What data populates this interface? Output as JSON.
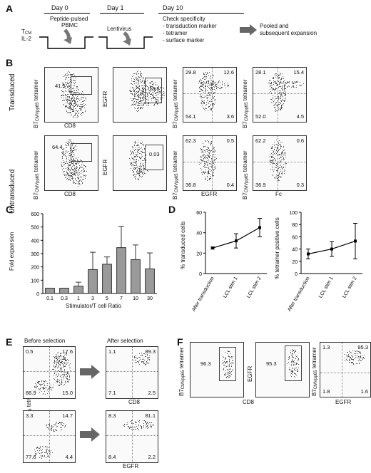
{
  "panelA": {
    "label": "A",
    "day0": "Day 0",
    "day1": "Day 1",
    "day10": "Day 10",
    "peptide": "Peptide-pulsed",
    "pbmc": "PBMC",
    "tcm": "T",
    "tcm_sub": "CM",
    "il2": "IL-2",
    "lentivirus": "Lentivirus",
    "check_title": "Check specificity",
    "check_items": [
      "- transduction marker",
      "- tetramer",
      "- surface marker"
    ],
    "pooled1": "Pooled and",
    "pooled2": "subsequent expansion"
  },
  "panelB": {
    "label": "B",
    "row1": "Transduced",
    "row2": "Untransduced",
    "tet_label": "B7",
    "tet_sub": "CMVpp65",
    "tet_suffix": " tetramer",
    "egfr": "EGFR",
    "cd8": "CD8",
    "fc": "Fc",
    "t_p1": "41.5",
    "t_p2": "13.8",
    "t_p3": [
      "29.8",
      "12.6",
      "54.1",
      "3.6"
    ],
    "t_p4": [
      "28.1",
      "15.4",
      "52.0",
      "4.5"
    ],
    "u_p1": "64.4",
    "u_p2": "0.03",
    "u_p3": [
      "62.3",
      "0.5",
      "36.8",
      "0.4"
    ],
    "u_p4": [
      "62.2",
      "0.6",
      "36.9",
      "0.3"
    ]
  },
  "panelC": {
    "label": "C",
    "chart_data": {
      "type": "bar",
      "categories": [
        "0.1",
        "0.3",
        "1",
        "3",
        "5",
        "7",
        "10",
        "30"
      ],
      "values": [
        40,
        40,
        55,
        180,
        220,
        345,
        255,
        185
      ],
      "errors_upper": [
        0,
        0,
        85,
        310,
        275,
        505,
        365,
        305
      ],
      "ylabel": "Fold expansion",
      "xlabel": "Stimulator/T cell Ratio",
      "ylim": [
        0,
        600
      ],
      "yticks": [
        "0",
        "100",
        "200",
        "300",
        "400",
        "500",
        "600"
      ]
    }
  },
  "panelD": {
    "label": "D",
    "chart_data": [
      {
        "type": "line",
        "categories": [
          "After transduction",
          "LCL stim 1",
          "LCL stim 2"
        ],
        "values": [
          25,
          32,
          45
        ],
        "err": [
          1,
          7,
          9
        ],
        "ylabel": "% transduced cells",
        "ylim": [
          0,
          60
        ],
        "yticks": [
          "0",
          "20",
          "40",
          "60"
        ]
      },
      {
        "type": "line",
        "categories": [
          "After transduction",
          "LCL stim 1",
          "LCL stim 2"
        ],
        "values": [
          32,
          40,
          53
        ],
        "err": [
          8,
          12,
          29
        ],
        "ylabel": "% tetramer positive cells",
        "ylim": [
          0,
          100
        ],
        "yticks": [
          "0",
          "20",
          "40",
          "60",
          "80",
          "100"
        ]
      }
    ]
  },
  "panelE": {
    "label": "E",
    "before": "Before selection",
    "after": "After selection",
    "cd8": "CD8",
    "egfr": "EGFR",
    "tl1": [
      "0.5",
      "17.6",
      "86.9",
      "15.0"
    ],
    "tr1": [
      "1.1",
      "89.3",
      "7.1",
      "2.5"
    ],
    "tl2": [
      "3.3",
      "14.7",
      "77.6",
      "4.4"
    ],
    "tr2": [
      "8.3",
      "81.1",
      "8.4",
      "2.2"
    ]
  },
  "panelF": {
    "label": "F",
    "cd8": "CD8",
    "egfr": "EGFR",
    "p1": "96.3",
    "p2": "95.3",
    "p3": [
      "1.3",
      "95.3",
      "1.8",
      "1.6"
    ]
  }
}
